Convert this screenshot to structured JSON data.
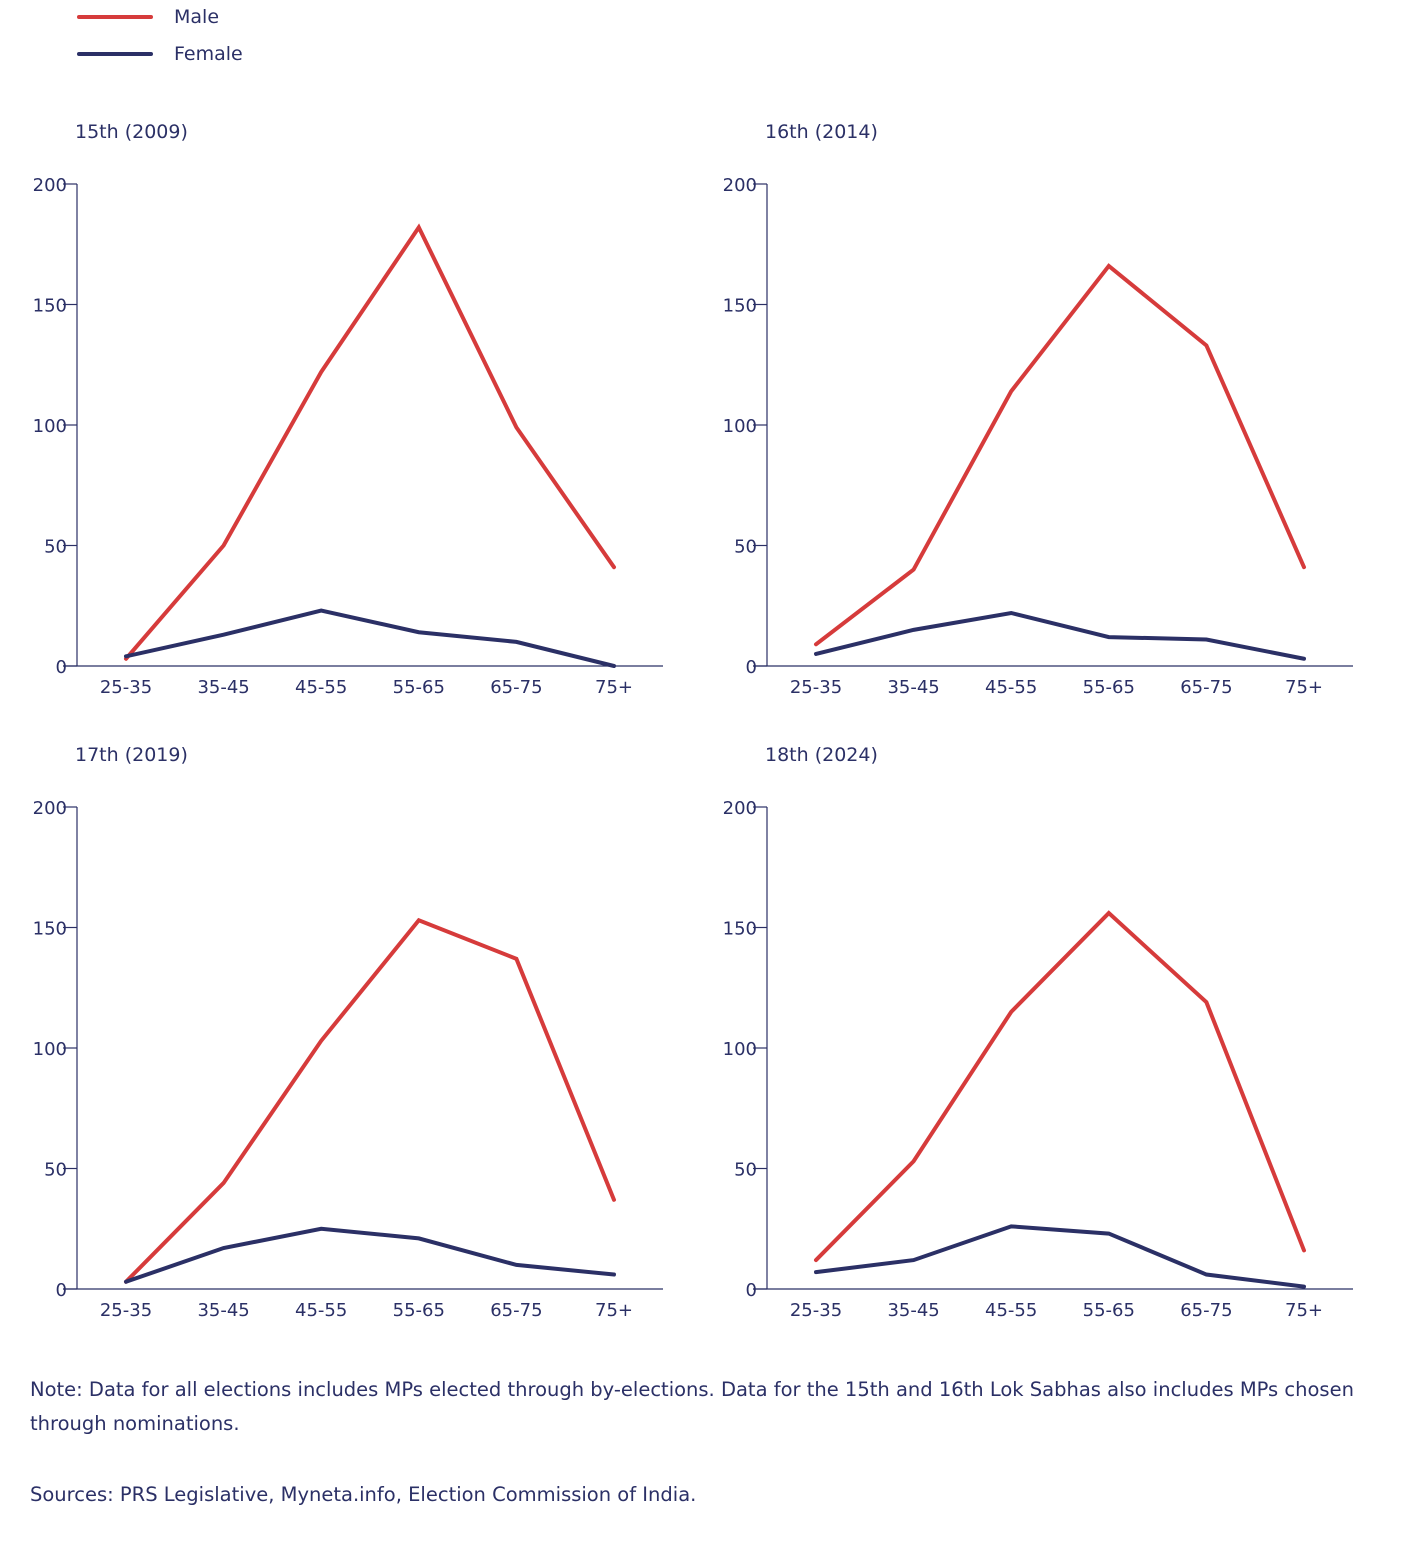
{
  "legend": {
    "items": [
      {
        "label": "Male",
        "color": "#d63b3b"
      },
      {
        "label": "Female",
        "color": "#2b3066"
      }
    ],
    "placement": "top-left"
  },
  "chart_data": [
    {
      "type": "line",
      "title": "15th (2009)",
      "categories": [
        "25-35",
        "35-45",
        "45-55",
        "55-65",
        "65-75",
        "75+"
      ],
      "ylim": [
        0,
        200
      ],
      "yticks": [
        0,
        50,
        100,
        150,
        200
      ],
      "grid": false,
      "series": [
        {
          "name": "Male",
          "color": "#d63b3b",
          "values": [
            3,
            50,
            122,
            182,
            99,
            41
          ]
        },
        {
          "name": "Female",
          "color": "#2b3066",
          "values": [
            4,
            13,
            23,
            14,
            10,
            0
          ]
        }
      ]
    },
    {
      "type": "line",
      "title": "16th (2014)",
      "categories": [
        "25-35",
        "35-45",
        "45-55",
        "55-65",
        "65-75",
        "75+"
      ],
      "ylim": [
        0,
        200
      ],
      "yticks": [
        0,
        50,
        100,
        150,
        200
      ],
      "grid": false,
      "series": [
        {
          "name": "Male",
          "color": "#d63b3b",
          "values": [
            9,
            40,
            114,
            166,
            133,
            41
          ]
        },
        {
          "name": "Female",
          "color": "#2b3066",
          "values": [
            5,
            15,
            22,
            12,
            11,
            3
          ]
        }
      ]
    },
    {
      "type": "line",
      "title": "17th (2019)",
      "categories": [
        "25-35",
        "35-45",
        "45-55",
        "55-65",
        "65-75",
        "75+"
      ],
      "ylim": [
        0,
        200
      ],
      "yticks": [
        0,
        50,
        100,
        150,
        200
      ],
      "grid": false,
      "series": [
        {
          "name": "Male",
          "color": "#d63b3b",
          "values": [
            3,
            44,
            103,
            153,
            137,
            37
          ]
        },
        {
          "name": "Female",
          "color": "#2b3066",
          "values": [
            3,
            17,
            25,
            21,
            10,
            6
          ]
        }
      ]
    },
    {
      "type": "line",
      "title": "18th (2024)",
      "categories": [
        "25-35",
        "35-45",
        "45-55",
        "55-65",
        "65-75",
        "75+"
      ],
      "ylim": [
        0,
        200
      ],
      "yticks": [
        0,
        50,
        100,
        150,
        200
      ],
      "grid": false,
      "series": [
        {
          "name": "Male",
          "color": "#d63b3b",
          "values": [
            12,
            53,
            115,
            156,
            119,
            16
          ]
        },
        {
          "name": "Female",
          "color": "#2b3066",
          "values": [
            7,
            12,
            26,
            23,
            6,
            1
          ]
        }
      ]
    }
  ],
  "notes": {
    "note": "Note: Data for all elections includes MPs elected through by-elections. Data for the 15th and 16th Lok Sabhas also includes MPs chosen through nominations.",
    "sources": "Sources: PRS Legislative, Myneta.info, Election Commission of India."
  }
}
